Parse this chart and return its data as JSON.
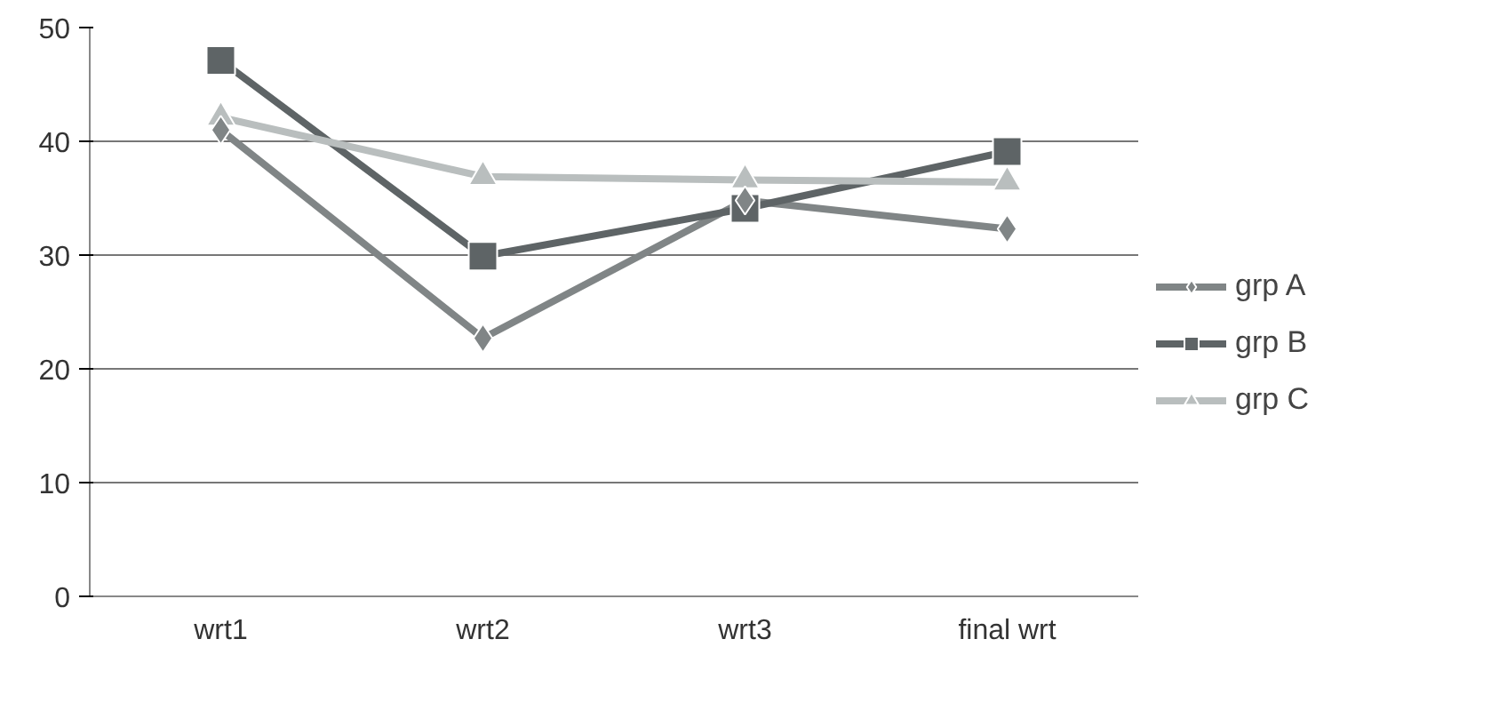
{
  "chart_data": {
    "type": "line",
    "categories": [
      "wrt1",
      "wrt2",
      "wrt3",
      "final wrt"
    ],
    "series": [
      {
        "name": "grp A",
        "color": "#808586",
        "marker": "diamond",
        "values": [
          41.0,
          22.7,
          34.8,
          32.3
        ]
      },
      {
        "name": "grp B",
        "color": "#5e6466",
        "marker": "square",
        "values": [
          47.1,
          29.9,
          34.1,
          39.1
        ]
      },
      {
        "name": "grp C",
        "color": "#b9bebe",
        "marker": "triangle",
        "values": [
          42.1,
          36.9,
          36.6,
          36.4
        ]
      }
    ],
    "ylim": [
      0,
      50
    ],
    "yticks": [
      0,
      10,
      20,
      30,
      40,
      50
    ],
    "grid": "y",
    "legend": "right"
  }
}
